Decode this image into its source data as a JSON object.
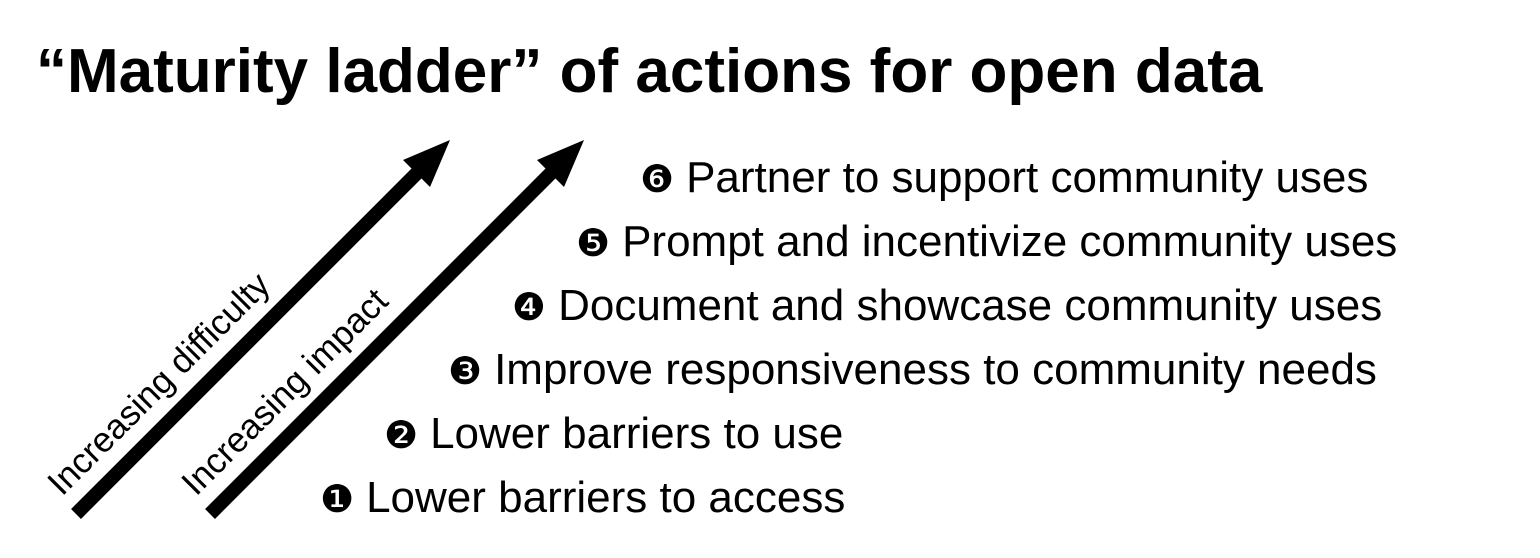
{
  "title": "“Maturity ladder” of actions for open data",
  "arrows": [
    {
      "label": "Increasing difficulty",
      "color": "#000000"
    },
    {
      "label": "Increasing impact",
      "color": "#000000"
    }
  ],
  "steps": [
    {
      "marker": "❻",
      "text": "Partner to support community uses"
    },
    {
      "marker": "❺",
      "text": "Prompt and incentivize community uses"
    },
    {
      "marker": "❹",
      "text": "Document and showcase community uses"
    },
    {
      "marker": "❸",
      "text": "Improve responsiveness to community needs"
    },
    {
      "marker": "❷",
      "text": "Lower barriers to use"
    },
    {
      "marker": "❶",
      "text": "Lower barriers to access"
    }
  ]
}
